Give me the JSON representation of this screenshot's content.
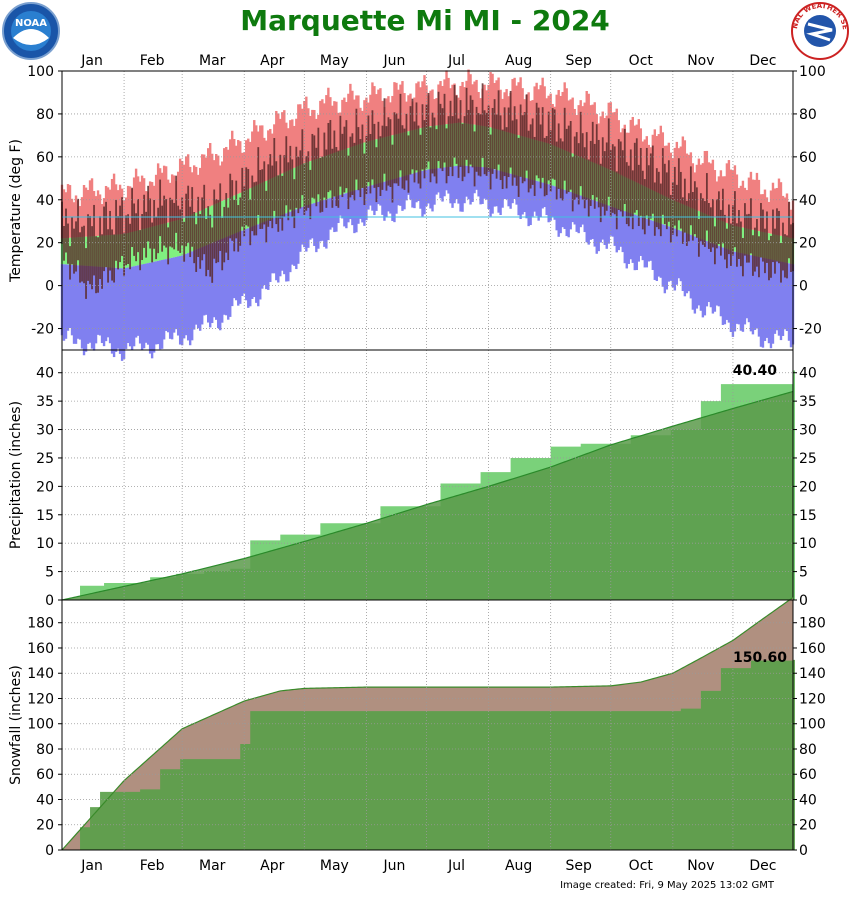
{
  "title": "Marquette Mi MI - 2024",
  "footer": "Image created: Fri, 9 May 2025 13:02 GMT",
  "logos": {
    "left": "noaa-logo",
    "right": "nws-logo",
    "nws_text": "NATIONAL WEATHER SERVICE"
  },
  "colors": {
    "title": "#0e7a0e",
    "record_high": "#f08080",
    "normal_band": "#80f080",
    "record_low": "#8080f0",
    "observed": "#5a2a2a",
    "precip_obs": "#7ad17a",
    "precip_normal": "#5a9a4a",
    "snow_normal": "#b09080",
    "snow_obs": "#5aa04a"
  },
  "chart_data": [
    {
      "type": "area",
      "ylabel": "Temperature (deg F)",
      "ylim": [
        -30,
        100
      ],
      "yticks": [
        -20,
        0,
        20,
        40,
        60,
        80,
        100
      ],
      "months": [
        "Jan",
        "Feb",
        "Mar",
        "Apr",
        "May",
        "Jun",
        "Jul",
        "Aug",
        "Sep",
        "Oct",
        "Nov",
        "Dec"
      ],
      "grid": true,
      "series": [
        {
          "key": "record_high",
          "x": [
            1,
            15,
            32,
            46,
            61,
            75,
            92,
            106,
            122,
            136,
            153,
            167,
            183,
            197,
            214,
            228,
            245,
            259,
            275,
            289,
            306,
            320,
            336,
            350,
            366
          ],
          "values": [
            42,
            44,
            46,
            50,
            55,
            60,
            68,
            75,
            82,
            86,
            88,
            90,
            92,
            94,
            94,
            92,
            90,
            86,
            80,
            72,
            66,
            58,
            52,
            46,
            42
          ]
        },
        {
          "key": "normal_high",
          "x": [
            1,
            32,
            61,
            92,
            122,
            153,
            183,
            200,
            214,
            245,
            275,
            306,
            336,
            366
          ],
          "values": [
            22,
            24,
            31,
            44,
            57,
            67,
            74,
            76,
            74,
            66,
            54,
            40,
            28,
            22
          ]
        },
        {
          "key": "normal_low",
          "x": [
            1,
            32,
            61,
            92,
            122,
            153,
            183,
            200,
            214,
            245,
            275,
            306,
            336,
            366
          ],
          "values": [
            10,
            8,
            14,
            26,
            37,
            46,
            54,
            56,
            55,
            47,
            37,
            27,
            16,
            10
          ]
        },
        {
          "key": "record_low",
          "x": [
            1,
            15,
            32,
            46,
            61,
            75,
            92,
            106,
            122,
            136,
            153,
            167,
            183,
            197,
            214,
            228,
            245,
            259,
            275,
            289,
            306,
            320,
            336,
            350,
            366
          ],
          "values": [
            -25,
            -27,
            -30,
            -28,
            -24,
            -18,
            -8,
            0,
            15,
            25,
            32,
            35,
            38,
            40,
            38,
            35,
            30,
            24,
            18,
            10,
            0,
            -10,
            -18,
            -24,
            -26
          ]
        },
        {
          "key": "observed_high",
          "x": [
            1,
            15,
            32,
            46,
            61,
            75,
            92,
            106,
            122,
            136,
            153,
            167,
            183,
            197,
            214,
            228,
            245,
            259,
            275,
            289,
            306,
            320,
            336,
            350,
            366
          ],
          "values": [
            30,
            28,
            34,
            38,
            40,
            36,
            48,
            58,
            62,
            70,
            72,
            78,
            80,
            84,
            82,
            80,
            76,
            70,
            66,
            60,
            52,
            42,
            34,
            30,
            28
          ]
        },
        {
          "key": "observed_low",
          "x": [
            1,
            15,
            32,
            46,
            61,
            75,
            92,
            106,
            122,
            136,
            153,
            167,
            183,
            197,
            214,
            228,
            245,
            259,
            275,
            289,
            306,
            320,
            336,
            350,
            366
          ],
          "values": [
            18,
            2,
            14,
            20,
            22,
            10,
            28,
            32,
            40,
            44,
            48,
            50,
            56,
            58,
            56,
            52,
            50,
            44,
            38,
            34,
            30,
            24,
            16,
            12,
            10
          ]
        }
      ],
      "reference_line": 32
    },
    {
      "type": "area",
      "ylabel": "Precipitation (inches)",
      "ylim": [
        0,
        44
      ],
      "yticks": [
        0,
        5,
        10,
        15,
        20,
        25,
        30,
        35,
        40
      ],
      "grid": true,
      "annotation": "40.40",
      "series": [
        {
          "key": "observed",
          "x": [
            1,
            10,
            22,
            45,
            58,
            72,
            85,
            95,
            110,
            130,
            160,
            190,
            210,
            225,
            245,
            260,
            285,
            305,
            320,
            330,
            366
          ],
          "values": [
            0,
            2.5,
            3.0,
            4.0,
            4.6,
            5.1,
            5.5,
            10.5,
            11.5,
            13.5,
            16.5,
            20.5,
            22.5,
            25.0,
            27.0,
            27.5,
            29.0,
            30.0,
            35.0,
            38.0,
            40.4
          ]
        },
        {
          "key": "normal",
          "x": [
            1,
            32,
            61,
            92,
            122,
            153,
            183,
            214,
            245,
            275,
            306,
            336,
            366
          ],
          "values": [
            0,
            2.4,
            4.6,
            7.3,
            10.3,
            13.5,
            16.8,
            20.0,
            23.4,
            27.3,
            30.6,
            33.7,
            36.7
          ]
        }
      ]
    },
    {
      "type": "area",
      "ylabel": "Snowfall (inches)",
      "ylim": [
        0,
        198
      ],
      "yticks": [
        0,
        20,
        40,
        60,
        80,
        100,
        120,
        140,
        160,
        180
      ],
      "grid": true,
      "annotation": "150.60",
      "series": [
        {
          "key": "normal",
          "x": [
            1,
            32,
            61,
            92,
            110,
            122,
            153,
            183,
            214,
            245,
            275,
            290,
            306,
            320,
            336,
            350,
            366
          ],
          "values": [
            0,
            55,
            96,
            118,
            126,
            128,
            129,
            129,
            129,
            129,
            130,
            133,
            140,
            152,
            166,
            182,
            200
          ]
        },
        {
          "key": "observed",
          "x": [
            1,
            10,
            15,
            20,
            40,
            50,
            60,
            75,
            90,
            95,
            300,
            310,
            320,
            330,
            345,
            366
          ],
          "values": [
            0,
            18,
            34,
            46,
            48,
            64,
            72,
            72,
            84,
            110,
            110,
            112,
            126,
            144,
            150,
            150.6
          ]
        }
      ]
    }
  ]
}
